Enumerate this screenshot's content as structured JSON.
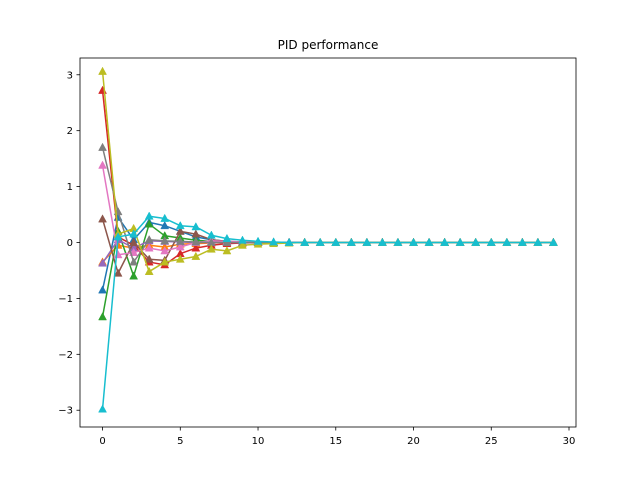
{
  "chart_data": {
    "type": "line",
    "title": "PID performance",
    "xlabel": "",
    "ylabel": "",
    "xlim": [
      -1.45,
      30.45
    ],
    "ylim": [
      -3.3,
      3.3
    ],
    "xticks": [
      0,
      5,
      10,
      15,
      20,
      25,
      30
    ],
    "yticks": [
      -3,
      -2,
      -1,
      0,
      1,
      2,
      3
    ],
    "xtick_labels": [
      "0",
      "5",
      "10",
      "15",
      "20",
      "25",
      "30"
    ],
    "ytick_labels": [
      "−3",
      "−2",
      "−1",
      "0",
      "1",
      "2",
      "3"
    ],
    "grid": false,
    "legend": "none",
    "marker": "triangle-up",
    "x": [
      0,
      1,
      2,
      3,
      4,
      5,
      6,
      7,
      8,
      9,
      10,
      11,
      12,
      13,
      14,
      15,
      16,
      17,
      18,
      19,
      20,
      21,
      22,
      23,
      24,
      25,
      26,
      27,
      28,
      29
    ],
    "series": [
      {
        "color": "#1f77b4",
        "values": [
          -0.85,
          0.45,
          0.05,
          0.36,
          0.3,
          0.2,
          0.1,
          0.05,
          0.02,
          0.01,
          0,
          0,
          0,
          0,
          0,
          0,
          0,
          0,
          0,
          0,
          0,
          0,
          0,
          0,
          0,
          0,
          0,
          0,
          0,
          0
        ]
      },
      {
        "color": "#ff7f0e",
        "values": [
          -0.35,
          -0.05,
          -0.1,
          -0.05,
          -0.08,
          -0.03,
          -0.02,
          -0.01,
          0,
          0,
          0,
          0,
          0,
          0,
          0,
          0,
          0,
          0,
          0,
          0,
          0,
          0,
          0,
          0,
          0,
          0,
          0,
          0,
          0,
          0
        ]
      },
      {
        "color": "#2ca02c",
        "values": [
          -1.33,
          0.2,
          -0.6,
          0.33,
          0.12,
          0.08,
          0.04,
          0.02,
          0.01,
          0,
          0,
          0,
          0,
          0,
          0,
          0,
          0,
          0,
          0,
          0,
          0,
          0,
          0,
          0,
          0,
          0,
          0,
          0,
          0,
          0
        ]
      },
      {
        "color": "#d62728",
        "values": [
          2.72,
          0.1,
          -0.05,
          -0.35,
          -0.4,
          -0.2,
          -0.1,
          -0.05,
          -0.02,
          -0.01,
          0,
          0,
          0,
          0,
          0,
          0,
          0,
          0,
          0,
          0,
          0,
          0,
          0,
          0,
          0,
          0,
          0,
          0,
          0,
          0
        ]
      },
      {
        "color": "#9467bd",
        "values": [
          -0.37,
          0.05,
          -0.1,
          0.03,
          0.02,
          0.01,
          0,
          0,
          0,
          0,
          0,
          0,
          0,
          0,
          0,
          0,
          0,
          0,
          0,
          0,
          0,
          0,
          0,
          0,
          0,
          0,
          0,
          0,
          0,
          0
        ]
      },
      {
        "color": "#8c564b",
        "values": [
          0.42,
          -0.55,
          0.0,
          -0.3,
          -0.32,
          0.2,
          0.15,
          0.05,
          0.02,
          0.01,
          0,
          0,
          0,
          0,
          0,
          0,
          0,
          0,
          0,
          0,
          0,
          0,
          0,
          0,
          0,
          0,
          0,
          0,
          0,
          0
        ]
      },
      {
        "color": "#e377c2",
        "values": [
          1.38,
          -0.22,
          -0.18,
          -0.1,
          -0.15,
          -0.08,
          0.0,
          0.03,
          0.02,
          0.01,
          0,
          0,
          0,
          0,
          0,
          0,
          0,
          0,
          0,
          0,
          0,
          0,
          0,
          0,
          0,
          0,
          0,
          0,
          0,
          0
        ]
      },
      {
        "color": "#7f7f7f",
        "values": [
          1.7,
          0.55,
          -0.35,
          0.05,
          0.03,
          0.02,
          0.01,
          0,
          0,
          0,
          0,
          0,
          0,
          0,
          0,
          0,
          0,
          0,
          0,
          0,
          0,
          0,
          0,
          0,
          0,
          0,
          0,
          0,
          0,
          0
        ]
      },
      {
        "color": "#bcbd22",
        "values": [
          3.06,
          0.15,
          0.25,
          -0.52,
          -0.35,
          -0.3,
          -0.25,
          -0.12,
          -0.15,
          -0.05,
          -0.03,
          -0.02,
          -0.01,
          0,
          0,
          0,
          0,
          0,
          0,
          0,
          0,
          0,
          0,
          0,
          0,
          0,
          0,
          0,
          0,
          0
        ]
      },
      {
        "color": "#17becf",
        "values": [
          -2.98,
          0.1,
          0.15,
          0.47,
          0.43,
          0.3,
          0.28,
          0.13,
          0.07,
          0.04,
          0.02,
          0.01,
          0,
          0,
          0,
          0,
          0,
          0,
          0,
          0,
          0,
          0,
          0,
          0,
          0,
          0,
          0,
          0,
          0,
          0
        ]
      }
    ]
  }
}
